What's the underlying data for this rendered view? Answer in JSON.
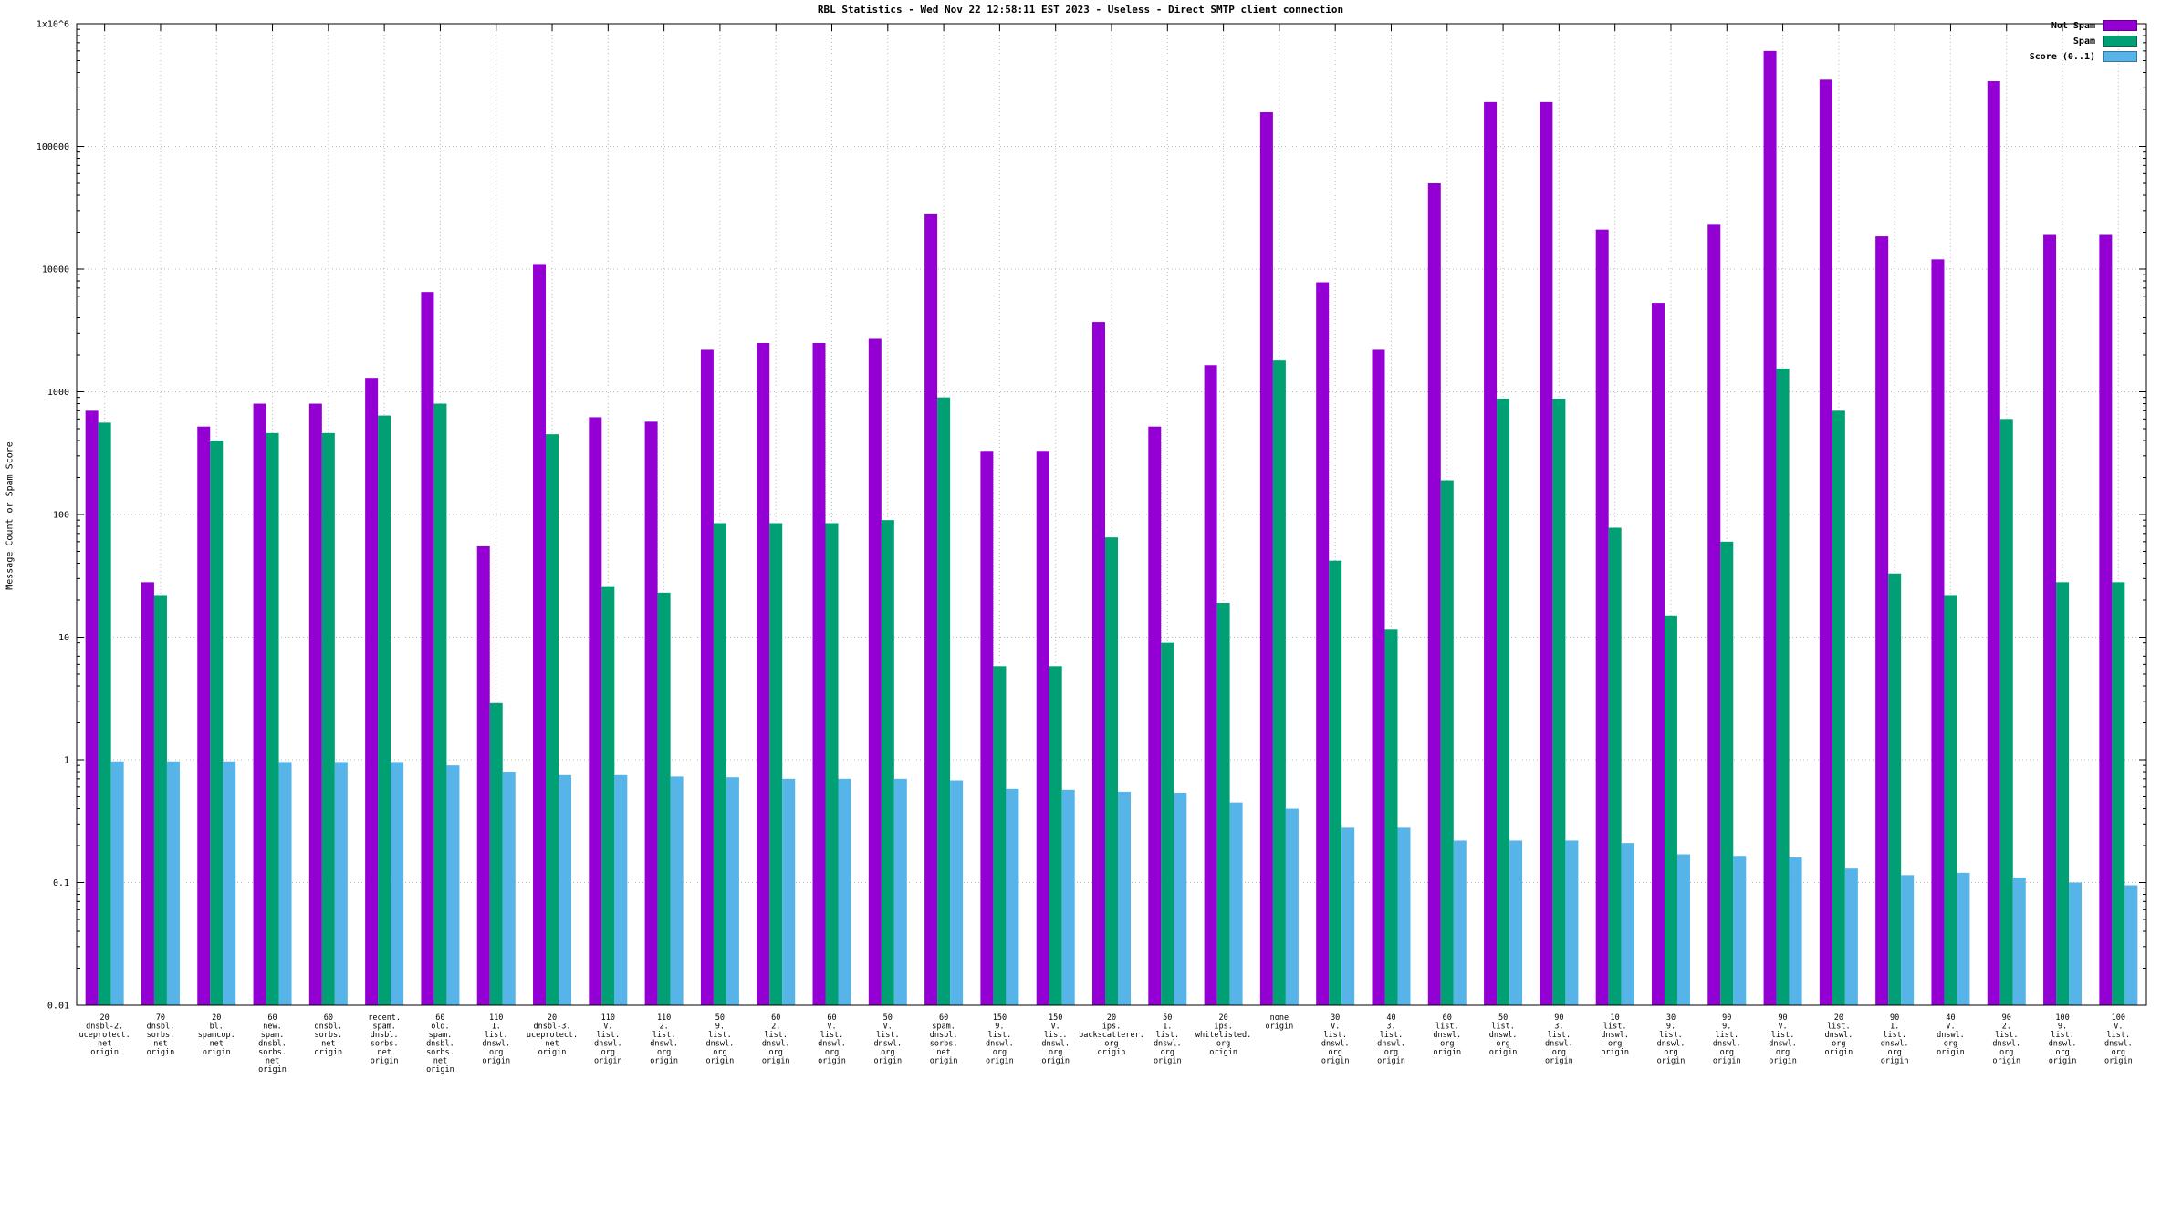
{
  "chart_data": {
    "type": "bar",
    "title": "RBL Statistics - Wed Nov 22 12:58:11 EST 2023 - Useless - Direct SMTP client connection",
    "ylabel": "Message Count or Spam Score",
    "xlabel": "",
    "yscale": "log",
    "ylim": [
      0.01,
      1000000
    ],
    "yticks": [
      "0.01",
      "0.1",
      "1",
      "10",
      "100",
      "1000",
      "10000",
      "100000",
      "1x10^6"
    ],
    "grid": true,
    "legend_position": "top-right",
    "categories": [
      [
        "20",
        "dnsbl-2.",
        "uceprotect.",
        "net",
        "origin"
      ],
      [
        "70",
        "dnsbl.",
        "sorbs.",
        "net",
        "origin"
      ],
      [
        "20",
        "bl.",
        "spamcop.",
        "net",
        "origin"
      ],
      [
        "60",
        "new.",
        "spam.",
        "dnsbl.",
        "sorbs.",
        "net",
        "origin"
      ],
      [
        "60",
        "dnsbl.",
        "sorbs.",
        "net",
        "origin"
      ],
      [
        "recent.",
        "spam.",
        "dnsbl.",
        "sorbs.",
        "net",
        "origin"
      ],
      [
        "60",
        "old.",
        "spam.",
        "dnsbl.",
        "sorbs.",
        "net",
        "origin"
      ],
      [
        "110",
        "1.",
        "list.",
        "dnswl.",
        "org",
        "origin"
      ],
      [
        "20",
        "dnsbl-3.",
        "uceprotect.",
        "net",
        "origin"
      ],
      [
        "110",
        "V.",
        "list.",
        "dnswl.",
        "org",
        "origin"
      ],
      [
        "110",
        "2.",
        "list.",
        "dnswl.",
        "org",
        "origin"
      ],
      [
        "50",
        "9.",
        "list.",
        "dnswl.",
        "org",
        "origin"
      ],
      [
        "60",
        "2.",
        "list.",
        "dnswl.",
        "org",
        "origin"
      ],
      [
        "60",
        "V.",
        "list.",
        "dnswl.",
        "org",
        "origin"
      ],
      [
        "50",
        "V.",
        "list.",
        "dnswl.",
        "org",
        "origin"
      ],
      [
        "60",
        "spam.",
        "dnsbl.",
        "sorbs.",
        "net",
        "origin"
      ],
      [
        "150",
        "9.",
        "list.",
        "dnswl.",
        "org",
        "origin"
      ],
      [
        "150",
        "V.",
        "list.",
        "dnswl.",
        "org",
        "origin"
      ],
      [
        "20",
        "ips.",
        "backscatterer.",
        "org",
        "origin"
      ],
      [
        "50",
        "1.",
        "list.",
        "dnswl.",
        "org",
        "origin"
      ],
      [
        "20",
        "ips.",
        "whitelisted.",
        "org",
        "origin"
      ],
      [
        "none",
        "origin"
      ],
      [
        "30",
        "V.",
        "list.",
        "dnswl.",
        "org",
        "origin"
      ],
      [
        "40",
        "3.",
        "list.",
        "dnswl.",
        "org",
        "origin"
      ],
      [
        "60",
        "list.",
        "dnswl.",
        "org",
        "origin"
      ],
      [
        "50",
        "list.",
        "dnswl.",
        "org",
        "origin"
      ],
      [
        "90",
        "3.",
        "list.",
        "dnswl.",
        "org",
        "origin"
      ],
      [
        "10",
        "list.",
        "dnswl.",
        "org",
        "origin"
      ],
      [
        "30",
        "9.",
        "list.",
        "dnswl.",
        "org",
        "origin"
      ],
      [
        "90",
        "9.",
        "list.",
        "dnswl.",
        "org",
        "origin"
      ],
      [
        "90",
        "V.",
        "list.",
        "dnswl.",
        "org",
        "origin"
      ],
      [
        "20",
        "list.",
        "dnswl.",
        "org",
        "origin"
      ],
      [
        "90",
        "1.",
        "list.",
        "dnswl.",
        "org",
        "origin"
      ],
      [
        "40",
        "V.",
        "dnswl.",
        "org",
        "origin"
      ],
      [
        "90",
        "2.",
        "list.",
        "dnswl.",
        "org",
        "origin"
      ],
      [
        "100",
        "9.",
        "list.",
        "dnswl.",
        "org",
        "origin"
      ],
      [
        "100",
        "V.",
        "list.",
        "dnswl.",
        "org",
        "origin"
      ]
    ],
    "series": [
      {
        "name": "Not Spam",
        "color": "#9400d3",
        "values": [
          700,
          28,
          520,
          800,
          800,
          1300,
          6500,
          55,
          11000,
          620,
          570,
          2200,
          2500,
          2500,
          2700,
          28000,
          330,
          330,
          3700,
          520,
          1650,
          190000,
          7800,
          2200,
          50000,
          230000,
          230000,
          21000,
          5300,
          23000,
          600000,
          350000,
          18500,
          12000,
          340000,
          19000,
          19000
        ]
      },
      {
        "name": "Spam",
        "color": "#00a074",
        "values": [
          560,
          22,
          400,
          460,
          460,
          640,
          800,
          2.9,
          450,
          26,
          23,
          85,
          85,
          85,
          90,
          900,
          5.8,
          5.8,
          65,
          9,
          19,
          1800,
          42,
          11.5,
          190,
          880,
          880,
          78,
          15,
          60,
          1550,
          700,
          33,
          22,
          600,
          28,
          28
        ]
      },
      {
        "name": "Score (0..1)",
        "color": "#56b4e9",
        "values": [
          0.97,
          0.97,
          0.97,
          0.96,
          0.96,
          0.96,
          0.9,
          0.8,
          0.75,
          0.75,
          0.73,
          0.72,
          0.7,
          0.7,
          0.7,
          0.68,
          0.58,
          0.57,
          0.55,
          0.54,
          0.45,
          0.4,
          0.28,
          0.28,
          0.22,
          0.22,
          0.22,
          0.21,
          0.17,
          0.165,
          0.16,
          0.13,
          0.115,
          0.12,
          0.11,
          0.1,
          0.095
        ]
      }
    ]
  }
}
